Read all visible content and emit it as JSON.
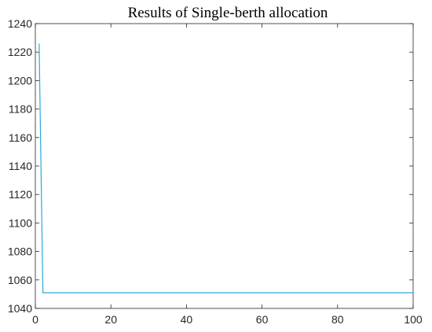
{
  "chart_data": {
    "type": "line",
    "title": "Results of Single-berth allocation",
    "xlabel": "",
    "ylabel": "",
    "xlim": [
      0,
      100
    ],
    "ylim": [
      1040,
      1240
    ],
    "xticks": [
      0,
      20,
      40,
      60,
      80,
      100
    ],
    "yticks": [
      1040,
      1060,
      1080,
      1100,
      1120,
      1140,
      1160,
      1180,
      1200,
      1220,
      1240
    ],
    "xtick_labels": [
      "0",
      "20",
      "40",
      "60",
      "80",
      "100"
    ],
    "ytick_labels": [
      "1040",
      "1060",
      "1080",
      "1100",
      "1120",
      "1140",
      "1160",
      "1180",
      "1200",
      "1220",
      "1240"
    ],
    "grid": false,
    "series": [
      {
        "color": "#2ea7d9",
        "x": [
          1,
          2,
          3,
          100
        ],
        "y": [
          1226,
          1051,
          1051,
          1051
        ]
      }
    ]
  }
}
